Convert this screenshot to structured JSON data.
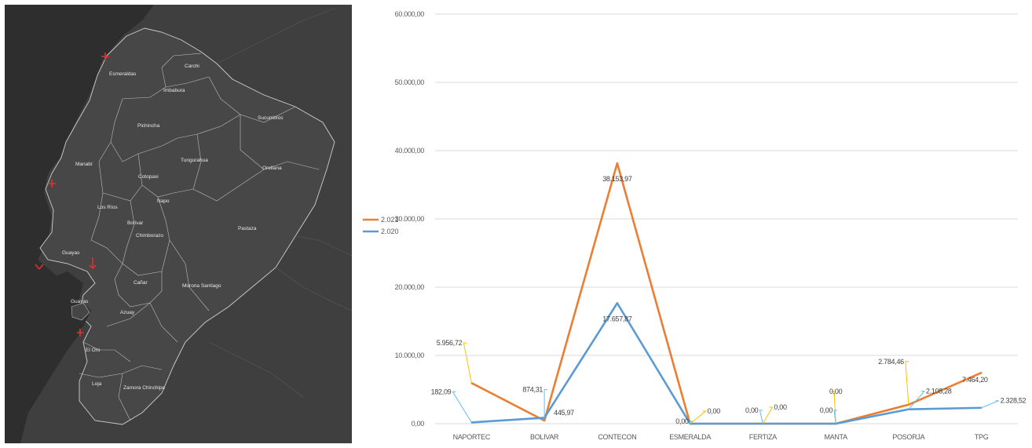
{
  "map": {
    "provinces": [
      {
        "id": "esmeraldas",
        "name": "Esmeraldas"
      },
      {
        "id": "carchi",
        "name": "Carchi"
      },
      {
        "id": "imbabura",
        "name": "Imbabura"
      },
      {
        "id": "sucumbios",
        "name": "Sucumbíos"
      },
      {
        "id": "pichincha",
        "name": "Pichincha"
      },
      {
        "id": "manabi",
        "name": "Manabí"
      },
      {
        "id": "tungurahua",
        "name": "Tungurahua"
      },
      {
        "id": "orellana",
        "name": "Orellana"
      },
      {
        "id": "cotopaxi",
        "name": "Cotopaxi"
      },
      {
        "id": "napo",
        "name": "Napo"
      },
      {
        "id": "los-rios",
        "name": "Los Ríos"
      },
      {
        "id": "bolivar",
        "name": "Bolívar"
      },
      {
        "id": "chimborazo",
        "name": "Chimborazo"
      },
      {
        "id": "pastaza",
        "name": "Pastaza"
      },
      {
        "id": "guayas",
        "name": "Guayas"
      },
      {
        "id": "guayas-2",
        "name": "Guayas"
      },
      {
        "id": "canar",
        "name": "Cañar"
      },
      {
        "id": "morona-santiago",
        "name": "Morona Santiago"
      },
      {
        "id": "azuay",
        "name": "Azuay"
      },
      {
        "id": "el-oro",
        "name": "El Oro"
      },
      {
        "id": "loja",
        "name": "Loja"
      },
      {
        "id": "zamora-chinchipe",
        "name": "Zamora Chinchipe"
      }
    ],
    "marker_color": "#e03030"
  },
  "chart_data": {
    "type": "line",
    "categories": [
      "NAPORTEC",
      "BOLIVAR",
      "CONTECON",
      "ESMERALDA",
      "FERTIZA",
      "MANTA",
      "POSORJA",
      "TPG"
    ],
    "ylim": [
      0,
      60000
    ],
    "yticks": [
      0,
      10000,
      20000,
      30000,
      40000,
      50000,
      60000
    ],
    "ytick_labels": [
      "0,00",
      "10.000,00",
      "20.000,00",
      "30.000,00",
      "40.000,00",
      "50.000,00",
      "60.000,00"
    ],
    "grid": true,
    "legend_position": "left",
    "series": [
      {
        "name": "2.021",
        "color": "#ed7d31",
        "label_color": "#ffc000",
        "values": [
          5956.72,
          445.97,
          38153.97,
          0,
          0,
          0,
          2784.46,
          7464.2
        ],
        "labels": [
          "5.956,72",
          "445,97",
          "38.153,97",
          "0,00",
          "0,00",
          "0,00",
          "2.784,46",
          "7.464,20"
        ]
      },
      {
        "name": "2.020",
        "color": "#5b9bd5",
        "label_color": "#5bc0eb",
        "values": [
          182.09,
          874.31,
          17657.87,
          0,
          0,
          0,
          2108.28,
          2328.52
        ],
        "labels": [
          "182,09",
          "874,31",
          "17.657,87",
          "0,00",
          "0,00",
          "0,00",
          "2.108,28",
          "2.328,52"
        ]
      }
    ]
  }
}
